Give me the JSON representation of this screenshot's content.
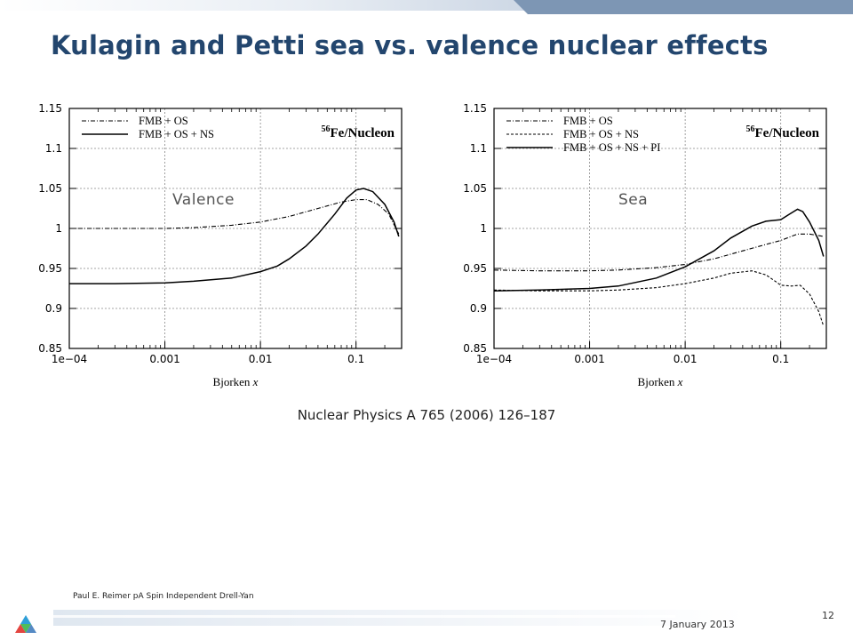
{
  "slide": {
    "title": "Kulagin and Petti sea vs. valence nuclear effects",
    "citation": "Nuclear Physics A 765 (2006) 126–187",
    "author": "Paul E. Reimer pA Spin Independent Drell-Yan",
    "date": "7 January 2013",
    "page": "12"
  },
  "colors": {
    "title": "#23466e",
    "accent": "#7d96b4"
  },
  "chart_data": [
    {
      "type": "line",
      "panel_label": "Valence",
      "annotation": "56Fe/Nucleon",
      "annotation_sup": "56",
      "annotation_main": "Fe/Nucleon",
      "xlabel": "Bjorken",
      "xlabel_var": "x",
      "x_scale": "log",
      "xlim": [
        0.0001,
        0.3
      ],
      "ylim": [
        0.85,
        1.15
      ],
      "x_ticks": [
        0.0001,
        0.001,
        0.01,
        0.1
      ],
      "x_tick_labels": [
        "1e−04",
        "0.001",
        "0.01",
        "0.1"
      ],
      "y_ticks": [
        0.85,
        0.9,
        0.95,
        1,
        1.05,
        1.1,
        1.15
      ],
      "y_tick_labels": [
        "0.85",
        "0.9",
        "0.95",
        "1",
        "1.05",
        "1.1",
        "1.15"
      ],
      "grid": "dashed at major ticks",
      "legend_position": "top-left",
      "series": [
        {
          "name": "FMB + OS",
          "style": "dashdot",
          "x": [
            0.0001,
            0.0003,
            0.001,
            0.002,
            0.005,
            0.01,
            0.02,
            0.04,
            0.07,
            0.1,
            0.13,
            0.17,
            0.22,
            0.28
          ],
          "y": [
            1.0,
            1.0,
            1.0,
            1.001,
            1.004,
            1.008,
            1.015,
            1.025,
            1.033,
            1.036,
            1.036,
            1.03,
            1.018,
            0.993
          ]
        },
        {
          "name": "FMB + OS + NS",
          "style": "solid",
          "x": [
            0.0001,
            0.0003,
            0.001,
            0.002,
            0.005,
            0.01,
            0.015,
            0.02,
            0.03,
            0.04,
            0.06,
            0.08,
            0.1,
            0.12,
            0.15,
            0.2,
            0.25,
            0.28
          ],
          "y": [
            0.931,
            0.931,
            0.932,
            0.934,
            0.938,
            0.946,
            0.953,
            0.962,
            0.978,
            0.993,
            1.018,
            1.038,
            1.048,
            1.05,
            1.046,
            1.03,
            1.008,
            0.99
          ]
        }
      ]
    },
    {
      "type": "line",
      "panel_label": "Sea",
      "annotation": "56Fe/Nucleon",
      "annotation_sup": "56",
      "annotation_main": "Fe/Nucleon",
      "xlabel": "Bjorken",
      "xlabel_var": "x",
      "x_scale": "log",
      "xlim": [
        0.0001,
        0.3
      ],
      "ylim": [
        0.85,
        1.15
      ],
      "x_ticks": [
        0.0001,
        0.001,
        0.01,
        0.1
      ],
      "x_tick_labels": [
        "1e−04",
        "0.001",
        "0.01",
        "0.1"
      ],
      "y_ticks": [
        0.85,
        0.9,
        0.95,
        1,
        1.05,
        1.1,
        1.15
      ],
      "y_tick_labels": [
        "0.85",
        "0.9",
        "0.95",
        "1",
        "1.05",
        "1.1",
        "1.15"
      ],
      "grid": "dashed at major ticks",
      "legend_position": "top-left",
      "series": [
        {
          "name": "FMB + OS",
          "style": "dashdot",
          "x": [
            0.0001,
            0.0003,
            0.001,
            0.002,
            0.005,
            0.01,
            0.02,
            0.04,
            0.07,
            0.1,
            0.15,
            0.2,
            0.25,
            0.28
          ],
          "y": [
            0.948,
            0.947,
            0.947,
            0.948,
            0.951,
            0.955,
            0.962,
            0.972,
            0.98,
            0.985,
            0.993,
            0.993,
            0.991,
            0.99
          ]
        },
        {
          "name": "FMB + OS + NS",
          "style": "dashed",
          "x": [
            0.0001,
            0.0003,
            0.001,
            0.002,
            0.005,
            0.01,
            0.02,
            0.03,
            0.05,
            0.07,
            0.09,
            0.1,
            0.13,
            0.16,
            0.2,
            0.25,
            0.28
          ],
          "y": [
            0.923,
            0.922,
            0.922,
            0.923,
            0.926,
            0.931,
            0.938,
            0.944,
            0.947,
            0.942,
            0.933,
            0.929,
            0.928,
            0.929,
            0.918,
            0.896,
            0.878
          ]
        },
        {
          "name": "FMB + OS + NS + PI",
          "style": "solid",
          "x": [
            0.0001,
            0.0003,
            0.001,
            0.002,
            0.005,
            0.01,
            0.02,
            0.03,
            0.05,
            0.07,
            0.1,
            0.12,
            0.15,
            0.17,
            0.2,
            0.25,
            0.28
          ],
          "y": [
            0.922,
            0.923,
            0.925,
            0.928,
            0.938,
            0.952,
            0.972,
            0.988,
            1.003,
            1.009,
            1.011,
            1.017,
            1.024,
            1.021,
            1.008,
            0.985,
            0.965
          ]
        }
      ]
    }
  ]
}
